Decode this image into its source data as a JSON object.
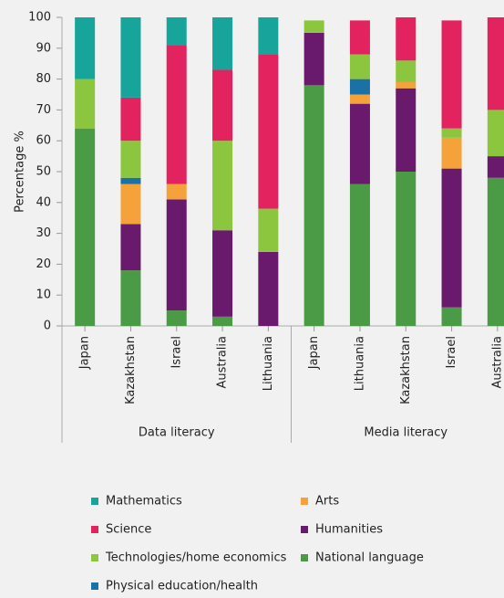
{
  "chart_data": {
    "type": "stacked_bar",
    "y_label": "Percentage %",
    "ylim": [
      0,
      100
    ],
    "yticks": [
      0,
      10,
      20,
      30,
      40,
      50,
      60,
      70,
      80,
      90,
      100
    ],
    "groups": [
      {
        "label": "Data literacy",
        "categories": [
          "Japan",
          "Kazakhstan",
          "Israel",
          "Australia",
          "Lithuania"
        ]
      },
      {
        "label": "Media literacy",
        "categories": [
          "Japan",
          "Lithuania",
          "Kazakhstan",
          "Israel",
          "Australia"
        ]
      }
    ],
    "series": [
      {
        "name": "Mathematics",
        "color": "#17a59b",
        "values": [
          20,
          26,
          9,
          17,
          12,
          0,
          0,
          0,
          0,
          0
        ]
      },
      {
        "name": "Science",
        "color": "#e3235f",
        "values": [
          0,
          14,
          45,
          23,
          50,
          0,
          11,
          14,
          35,
          30
        ]
      },
      {
        "name": "Technologies/home economics",
        "color": "#8cc63e",
        "values": [
          16,
          12,
          0,
          29,
          14,
          4,
          8,
          7,
          3,
          15
        ]
      },
      {
        "name": "Physical education/health",
        "color": "#1b70a6",
        "values": [
          0,
          2,
          0,
          0,
          0,
          0,
          5,
          0,
          0,
          0
        ]
      },
      {
        "name": "Arts",
        "color": "#f5a23a",
        "values": [
          0,
          13,
          5,
          0,
          0,
          0,
          3,
          2,
          10,
          0
        ]
      },
      {
        "name": "Humanities",
        "color": "#6a1a6c",
        "values": [
          0,
          15,
          36,
          28,
          24,
          17,
          26,
          27,
          45,
          7
        ]
      },
      {
        "name": "National language",
        "color": "#4a9a46",
        "values": [
          64,
          18,
          5,
          3,
          0,
          78,
          46,
          50,
          6,
          48
        ]
      }
    ]
  }
}
